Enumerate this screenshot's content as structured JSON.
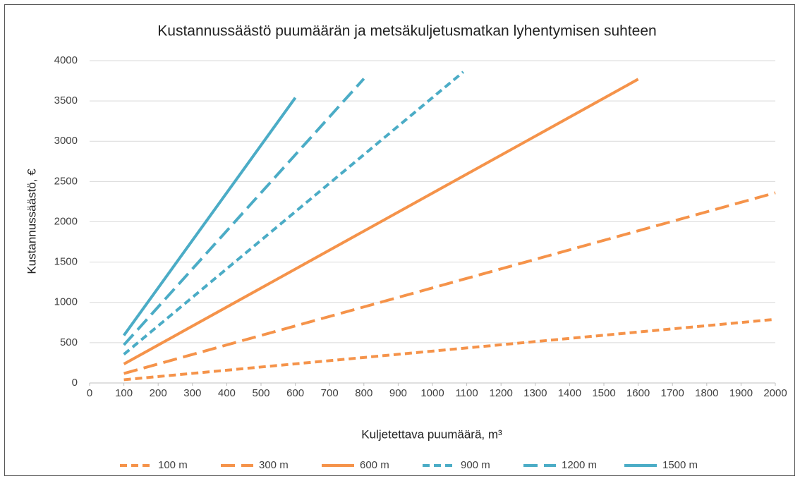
{
  "chart_data": {
    "type": "line",
    "title": "Kustannussäästö puumäärän ja metsäkuljetusmatkan lyhentymisen suhteen",
    "xlabel": "Kuljetettava puumäärä, m³",
    "ylabel": "Kustannussäästö, €",
    "xlim": [
      0,
      2000
    ],
    "xticks": [
      0,
      100,
      200,
      300,
      400,
      500,
      600,
      700,
      800,
      900,
      1000,
      1100,
      1200,
      1300,
      1400,
      1500,
      1600,
      1700,
      1800,
      1900,
      2000
    ],
    "ylim": [
      0,
      4000
    ],
    "yticks": [
      0,
      500,
      1000,
      1500,
      2000,
      2500,
      3000,
      3500,
      4000
    ],
    "grid": true,
    "legend": "bottom",
    "series": [
      {
        "name": "100 m",
        "color": "#f5934a",
        "dash": "short",
        "x": [
          100,
          2000
        ],
        "values": [
          40,
          790
        ]
      },
      {
        "name": "300 m",
        "color": "#f5934a",
        "dash": "long",
        "x": [
          100,
          2000
        ],
        "values": [
          118,
          2360
        ]
      },
      {
        "name": "600 m",
        "color": "#f5934a",
        "dash": "solid",
        "x": [
          100,
          1600
        ],
        "values": [
          235,
          3770
        ]
      },
      {
        "name": "900 m",
        "color": "#4bacc6",
        "dash": "short",
        "x": [
          100,
          1090
        ],
        "values": [
          355,
          3860
        ]
      },
      {
        "name": "1200 m",
        "color": "#4bacc6",
        "dash": "long",
        "x": [
          100,
          800
        ],
        "values": [
          472,
          3776
        ]
      },
      {
        "name": "1500 m",
        "color": "#4bacc6",
        "dash": "solid",
        "x": [
          100,
          600
        ],
        "values": [
          590,
          3540
        ]
      }
    ]
  }
}
